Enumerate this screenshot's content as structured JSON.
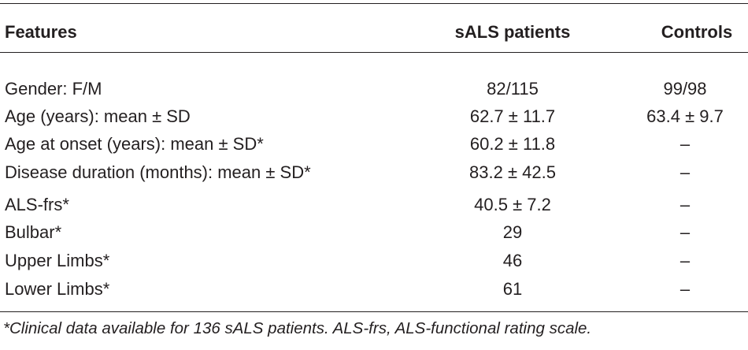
{
  "table": {
    "headers": {
      "features": "Features",
      "sals": "sALS patients",
      "controls": "Controls"
    },
    "rows": [
      {
        "feature": "Gender: F/M",
        "sals": "82/115",
        "controls": "99/98"
      },
      {
        "feature": "Age (years): mean ± SD",
        "sals": "62.7 ± 11.7",
        "controls": "63.4 ± 9.7"
      },
      {
        "feature": "Age at onset (years): mean ± SD*",
        "sals": "60.2 ± 11.8",
        "controls": "–"
      },
      {
        "feature": "Disease duration (months): mean ± SD*",
        "sals": "83.2 ± 42.5",
        "controls": "–"
      },
      {
        "feature": "ALS-frs*",
        "sals": "40.5 ± 7.2",
        "controls": "–"
      },
      {
        "feature": "Bulbar*",
        "sals": "29",
        "controls": "–"
      },
      {
        "feature": "Upper Limbs*",
        "sals": "46",
        "controls": "–"
      },
      {
        "feature": "Lower Limbs*",
        "sals": "61",
        "controls": "–"
      }
    ],
    "footnote": "*Clinical data available for 136 sALS patients. ALS-frs, ALS-functional rating scale."
  }
}
